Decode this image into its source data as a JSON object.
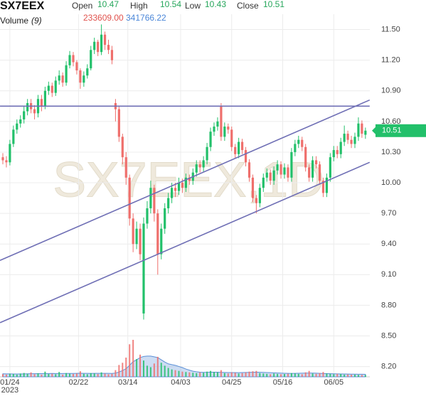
{
  "chart_data": {
    "type": "candlestick",
    "title": "SX7EEX",
    "watermark": "SX7EEX,1D",
    "ohlc": [
      {
        "label": "Open",
        "value": 10.47
      },
      {
        "label": "High",
        "value": 10.54
      },
      {
        "label": "Low",
        "value": 10.43
      },
      {
        "label": "Close",
        "value": 10.51
      }
    ],
    "volume_label": "Volume",
    "volume_period": "(9)",
    "volume_readout": [
      "233609.00",
      "341766.22"
    ],
    "up_color": "#22c06a",
    "down_color": "#ef6f6c",
    "volume_ma_color": "#5b8fd6",
    "line_color": "#6f6fb5",
    "ylim": [
      8.1,
      11.65
    ],
    "yticks": [
      {
        "value": 11.5,
        "label": "11.50"
      },
      {
        "value": 11.2,
        "label": "11.20"
      },
      {
        "value": 10.9,
        "label": "10.90"
      },
      {
        "value": 10.6,
        "label": "10.60"
      },
      {
        "value": 10.3,
        "label": "10.30"
      },
      {
        "value": 10.0,
        "label": "10.00"
      },
      {
        "value": 9.7,
        "label": "9.70"
      },
      {
        "value": 9.4,
        "label": "9.40"
      },
      {
        "value": 9.1,
        "label": "9.10"
      },
      {
        "value": 8.8,
        "label": "8.80"
      },
      {
        "value": 8.5,
        "label": "8.50"
      },
      {
        "value": 8.2,
        "label": "8.20"
      }
    ],
    "xticks": [
      {
        "value": 2,
        "label": "01/24"
      },
      {
        "value": 21.5,
        "label": "02/22"
      },
      {
        "value": 35.5,
        "label": "03/14"
      },
      {
        "value": 50.5,
        "label": "04/03"
      },
      {
        "value": 65,
        "label": "04/25"
      },
      {
        "value": 79.5,
        "label": "05/16"
      },
      {
        "value": 94,
        "label": "06/05"
      }
    ],
    "x_year": "2023",
    "grid": true,
    "open": [
      10.25,
      10.22,
      10.2,
      10.38,
      10.52,
      10.58,
      10.62,
      10.7,
      10.78,
      10.72,
      10.68,
      10.82,
      10.75,
      10.9,
      10.95,
      10.88,
      11.0,
      11.05,
      10.98,
      11.15,
      11.25,
      11.18,
      11.1,
      10.98,
      11.05,
      11.12,
      11.3,
      11.38,
      11.28,
      11.45,
      11.35,
      11.3,
      10.78,
      10.72,
      10.45,
      10.25,
      10.05,
      9.65,
      9.4,
      9.55,
      8.72,
      9.6,
      9.75,
      9.95,
      9.7,
      9.3,
      9.55,
      9.75,
      9.85,
      9.95,
      9.92,
      10.0,
      9.95,
      10.05,
      10.02,
      10.1,
      10.18,
      10.15,
      10.22,
      10.35,
      10.5,
      10.55,
      10.75,
      10.45,
      10.55,
      10.52,
      10.35,
      10.28,
      10.4,
      10.32,
      10.2,
      10.05,
      9.85,
      9.8,
      9.95,
      10.05,
      10.1,
      10.02,
      10.12,
      10.18,
      10.08,
      10.15,
      10.05,
      10.3,
      10.38,
      10.42,
      10.35,
      10.15,
      10.05,
      10.22,
      10.18,
      10.02,
      9.9,
      10.05,
      10.25,
      10.32,
      10.28,
      10.4,
      10.48,
      10.42,
      10.38,
      10.45,
      10.58,
      10.47
    ],
    "high": [
      10.29,
      10.26,
      10.42,
      10.56,
      10.62,
      10.66,
      10.75,
      10.82,
      10.82,
      10.76,
      10.86,
      10.86,
      10.94,
      10.99,
      10.98,
      11.04,
      11.1,
      11.08,
      11.19,
      11.29,
      11.28,
      11.2,
      11.12,
      11.09,
      11.16,
      11.34,
      11.42,
      11.4,
      11.55,
      11.48,
      11.4,
      11.34,
      10.82,
      10.75,
      10.48,
      10.3,
      10.08,
      9.7,
      9.62,
      9.6,
      9.66,
      9.82,
      10.02,
      9.98,
      9.74,
      9.6,
      9.8,
      9.9,
      10.0,
      10.0,
      10.05,
      10.04,
      10.09,
      10.08,
      10.14,
      10.22,
      10.22,
      10.26,
      10.39,
      10.54,
      10.59,
      10.64,
      10.78,
      10.59,
      10.58,
      10.55,
      10.38,
      10.44,
      10.43,
      10.35,
      10.23,
      10.08,
      9.88,
      9.99,
      10.09,
      10.14,
      10.13,
      10.16,
      10.22,
      10.21,
      10.19,
      10.18,
      10.34,
      10.42,
      10.46,
      10.45,
      10.38,
      10.18,
      10.26,
      10.26,
      10.21,
      10.05,
      10.09,
      10.29,
      10.36,
      10.36,
      10.44,
      10.56,
      10.51,
      10.46,
      10.49,
      10.64,
      10.61,
      10.54
    ],
    "low": [
      10.18,
      10.15,
      10.17,
      10.35,
      10.48,
      10.54,
      10.58,
      10.66,
      10.68,
      10.62,
      10.64,
      10.7,
      10.72,
      10.86,
      10.84,
      10.85,
      10.96,
      10.94,
      10.95,
      11.12,
      11.14,
      11.06,
      10.92,
      10.94,
      11.02,
      11.1,
      11.26,
      11.24,
      11.25,
      11.3,
      11.26,
      11.16,
      10.6,
      10.4,
      10.18,
      9.98,
      9.58,
      9.32,
      9.35,
      9.24,
      8.66,
      9.55,
      9.7,
      9.62,
      9.1,
      9.25,
      9.5,
      9.7,
      9.8,
      9.86,
      9.88,
      9.9,
      9.91,
      9.98,
      9.98,
      10.06,
      10.1,
      10.11,
      10.18,
      10.31,
      10.46,
      10.51,
      10.41,
      10.41,
      10.48,
      10.31,
      10.24,
      10.24,
      10.28,
      10.16,
      10.01,
      9.81,
      9.7,
      9.76,
      9.91,
      10.01,
      9.98,
      9.98,
      10.08,
      10.04,
      10.04,
      10.01,
      10.01,
      10.26,
      10.34,
      10.31,
      10.11,
      10.01,
      10.01,
      10.14,
      9.98,
      9.86,
      9.86,
      10.01,
      10.21,
      10.24,
      10.24,
      10.36,
      10.38,
      10.34,
      10.34,
      10.41,
      10.44,
      10.43
    ],
    "close": [
      10.22,
      10.2,
      10.38,
      10.52,
      10.58,
      10.62,
      10.7,
      10.78,
      10.72,
      10.68,
      10.82,
      10.75,
      10.9,
      10.95,
      10.88,
      11.0,
      11.05,
      10.98,
      11.15,
      11.25,
      11.18,
      11.1,
      10.98,
      11.05,
      11.12,
      11.3,
      11.38,
      11.28,
      11.45,
      11.35,
      11.3,
      11.2,
      10.72,
      10.45,
      10.25,
      10.05,
      9.65,
      9.4,
      9.55,
      9.3,
      9.6,
      9.75,
      9.95,
      9.7,
      9.3,
      9.55,
      9.75,
      9.85,
      9.95,
      9.92,
      10.0,
      9.95,
      10.05,
      10.02,
      10.1,
      10.18,
      10.15,
      10.22,
      10.35,
      10.5,
      10.55,
      10.6,
      10.45,
      10.55,
      10.52,
      10.35,
      10.28,
      10.4,
      10.32,
      10.2,
      10.05,
      9.85,
      9.8,
      9.95,
      10.05,
      10.1,
      10.02,
      10.12,
      10.18,
      10.08,
      10.15,
      10.05,
      10.3,
      10.38,
      10.42,
      10.35,
      10.15,
      10.05,
      10.22,
      10.18,
      10.02,
      9.9,
      10.05,
      10.25,
      10.32,
      10.28,
      10.4,
      10.48,
      10.42,
      10.38,
      10.45,
      10.58,
      10.48,
      10.51
    ],
    "volume": [
      350000,
      300000,
      420000,
      380000,
      300000,
      450000,
      520000,
      400000,
      600000,
      350000,
      480000,
      300000,
      700000,
      380000,
      420000,
      350000,
      650000,
      300000,
      500000,
      420000,
      380000,
      450000,
      750000,
      400000,
      350000,
      500000,
      450000,
      380000,
      600000,
      420000,
      350000,
      400000,
      900000,
      1600000,
      1900000,
      2600000,
      4400000,
      5000000,
      2400000,
      3000000,
      2200000,
      1500000,
      1300000,
      1800000,
      2700000,
      1900000,
      1500000,
      1200000,
      1000000,
      900000,
      800000,
      700000,
      650000,
      600000,
      550000,
      500000,
      600000,
      550000,
      700000,
      800000,
      650000,
      600000,
      900000,
      500000,
      450000,
      600000,
      550000,
      450000,
      500000,
      600000,
      700000,
      750000,
      800000,
      500000,
      450000,
      400000,
      350000,
      450000,
      400000,
      350000,
      380000,
      420000,
      500000,
      450000,
      400000,
      350000,
      600000,
      800000,
      450000,
      400000,
      500000,
      650000,
      450000,
      400000,
      350000,
      400000,
      380000,
      300000,
      320000,
      280000,
      300000,
      260000,
      250000,
      233609
    ],
    "volume_ma": [
      410000,
      400000,
      395000,
      390000,
      385000,
      390000,
      400000,
      405000,
      420000,
      420000,
      430000,
      430000,
      445000,
      450000,
      455000,
      445000,
      450000,
      440000,
      455000,
      460000,
      460000,
      470000,
      480000,
      470000,
      465000,
      460000,
      470000,
      465000,
      470000,
      470000,
      465000,
      460000,
      500000,
      650000,
      850000,
      1100000,
      1550000,
      2050000,
      2300000,
      2600000,
      2750000,
      2800000,
      2800000,
      2700000,
      2600000,
      2300000,
      2000000,
      1750000,
      1650000,
      1550000,
      1400000,
      1250000,
      1050000,
      900000,
      760000,
      680000,
      620000,
      600000,
      610000,
      620000,
      620000,
      620000,
      600000,
      590000,
      580000,
      575000,
      570000,
      565000,
      575000,
      590000,
      600000,
      610000,
      620000,
      610000,
      600000,
      580000,
      560000,
      540000,
      520000,
      500000,
      480000,
      470000,
      460000,
      470000,
      480000,
      490000,
      500000,
      510000,
      500000,
      490000,
      470000,
      450000,
      430000,
      420000,
      410000,
      400000,
      390000,
      380000,
      370000,
      360000,
      355000,
      350000,
      345000,
      341766
    ],
    "lines": [
      {
        "x": [
          -0.8,
          104.2
        ],
        "y": [
          9.24,
          10.81
        ]
      },
      {
        "x": [
          -0.8,
          104.2
        ],
        "y": [
          8.63,
          10.2
        ]
      },
      {
        "x": [
          -0.8,
          104.2
        ],
        "y": [
          10.75,
          10.75
        ]
      }
    ]
  }
}
